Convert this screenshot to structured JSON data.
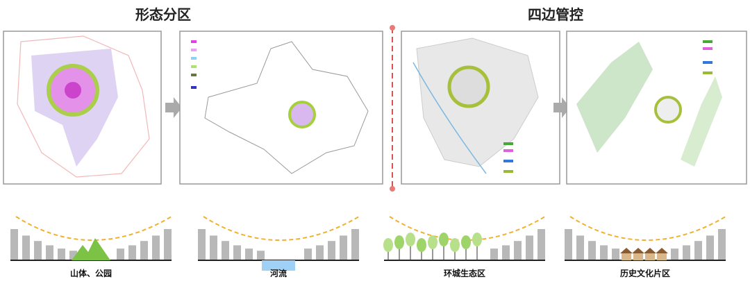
{
  "header": {
    "left_title": "形态分区",
    "right_title": "四边管控"
  },
  "sections": [
    {
      "label": "山体、公园"
    },
    {
      "label": "河流"
    },
    {
      "label": "环城生态区"
    },
    {
      "label": "历史文化片区"
    }
  ]
}
